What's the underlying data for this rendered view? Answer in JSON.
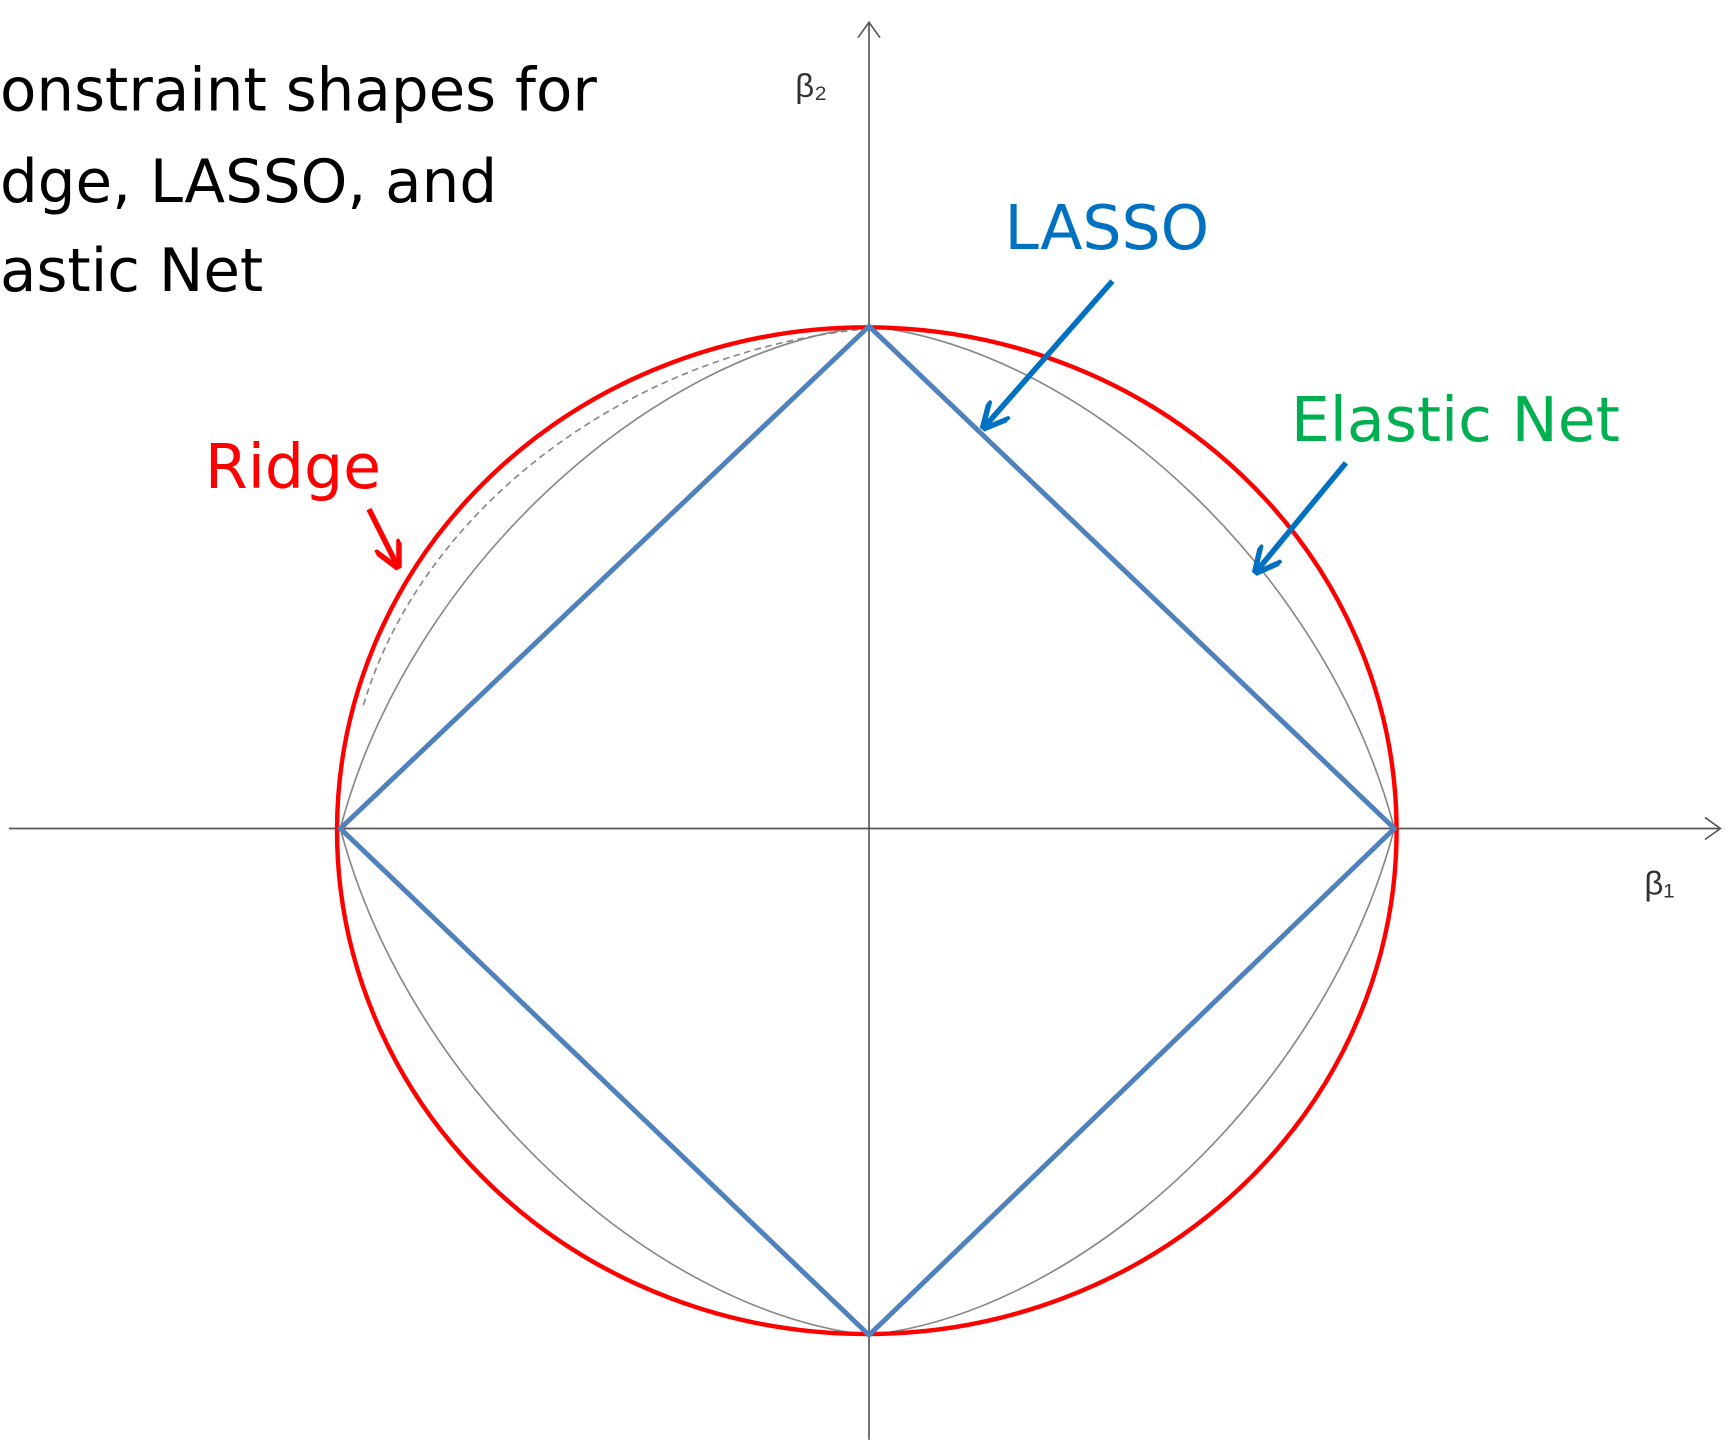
{
  "title_lines": [
    "onstraint shapes for",
    "dge, LASSO, and",
    "astic Net"
  ],
  "labels": {
    "ridge": "Ridge",
    "lasso": "LASSO",
    "elastic_net": "Elastic Net"
  },
  "axes": {
    "x": "β₁",
    "y": "β₂"
  }
}
